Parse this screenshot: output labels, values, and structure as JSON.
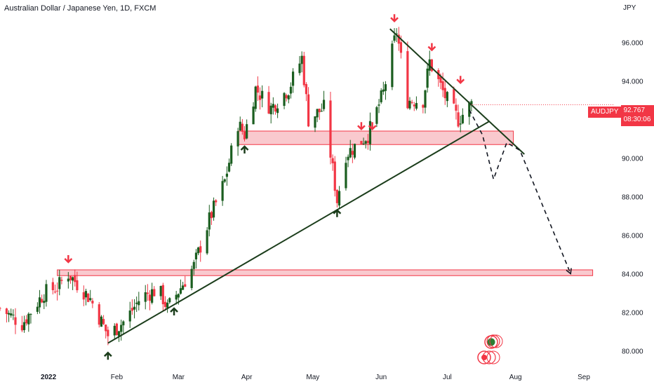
{
  "chart": {
    "title": "Australian Dollar / Japanese Yen, 1D, FXCM",
    "price_unit": "JPY",
    "symbol": "AUDJPY",
    "last_price": "92.767",
    "countdown": "08:30:06"
  },
  "colors": {
    "bullish": "#26a69a",
    "bullish_body": "#1b5e20",
    "bearish": "#f23645",
    "zone_fill": "#f7b7bd",
    "arrow_down": "#f23645",
    "arrow_up": "#1b3d1b",
    "trendline": "#1b3d1b"
  },
  "chart_data": {
    "type": "candlestick",
    "instrument": "AUDJPY",
    "timeframe": "1D",
    "y_range": [
      79.0,
      98.2
    ],
    "y_ticks": [
      80,
      82,
      84,
      86,
      88,
      90,
      92,
      94,
      96
    ],
    "y_tick_labels": [
      "80.000",
      "82.000",
      "84.000",
      "86.000",
      "88.000",
      "90.000",
      "92.000",
      "94.000",
      "96.000"
    ],
    "x_range": [
      "2021-12-10",
      "2022-09-15"
    ],
    "x_ticks": [
      {
        "date": "2022-01-01",
        "label": "2022",
        "bold": true
      },
      {
        "date": "2022-02-01",
        "label": "Feb"
      },
      {
        "date": "2022-03-01",
        "label": "Mar"
      },
      {
        "date": "2022-04-01",
        "label": "Apr"
      },
      {
        "date": "2022-05-01",
        "label": "May"
      },
      {
        "date": "2022-06-01",
        "label": "Jun"
      },
      {
        "date": "2022-07-01",
        "label": "Jul"
      },
      {
        "date": "2022-08-01",
        "label": "Aug"
      },
      {
        "date": "2022-09-01",
        "label": "Sep"
      }
    ],
    "close_path": [
      [
        "2021-12-10",
        82.2
      ],
      [
        "2021-12-20",
        81.4
      ],
      [
        "2021-12-30",
        83.0
      ],
      [
        "2022-01-05",
        83.3
      ],
      [
        "2022-01-10",
        84.0
      ],
      [
        "2022-01-20",
        82.7
      ],
      [
        "2022-01-28",
        80.8
      ],
      [
        "2022-02-05",
        81.6
      ],
      [
        "2022-02-12",
        82.8
      ],
      [
        "2022-02-20",
        83.2
      ],
      [
        "2022-02-24",
        82.2
      ],
      [
        "2022-03-01",
        83.1
      ],
      [
        "2022-03-08",
        84.4
      ],
      [
        "2022-03-15",
        86.8
      ],
      [
        "2022-03-22",
        88.8
      ],
      [
        "2022-03-28",
        91.8
      ],
      [
        "2022-03-31",
        91.2
      ],
      [
        "2022-04-05",
        93.6
      ],
      [
        "2022-04-12",
        92.6
      ],
      [
        "2022-04-20",
        93.6
      ],
      [
        "2022-04-26",
        95.2
      ],
      [
        "2022-04-29",
        92.0
      ],
      [
        "2022-05-06",
        92.6
      ],
      [
        "2022-05-12",
        87.8
      ],
      [
        "2022-05-16",
        90.2
      ],
      [
        "2022-05-26",
        91.2
      ],
      [
        "2022-06-02",
        93.4
      ],
      [
        "2022-06-08",
        96.6
      ],
      [
        "2022-06-13",
        93.0
      ],
      [
        "2022-06-20",
        93.0
      ],
      [
        "2022-06-23",
        95.0
      ],
      [
        "2022-06-30",
        93.2
      ],
      [
        "2022-07-06",
        92.0
      ],
      [
        "2022-07-12",
        92.8
      ]
    ],
    "zones": [
      {
        "x_start": "2022-03-28",
        "x_end": "2022-07-31",
        "y_low": 90.7,
        "y_high": 91.4
      },
      {
        "x_start": "2022-01-05",
        "x_end": "2022-09-05",
        "y_low": 83.9,
        "y_high": 84.2
      }
    ],
    "trendlines": [
      {
        "from": [
          "2022-01-28",
          80.4
        ],
        "to": [
          "2022-07-20",
          91.9
        ]
      },
      {
        "from": [
          "2022-06-05",
          96.7
        ],
        "to": [
          "2022-08-05",
          90.2
        ]
      }
    ],
    "projection": [
      [
        "2022-07-11",
        92.5
      ],
      [
        "2022-07-17",
        91.2
      ],
      [
        "2022-07-22",
        88.9
      ],
      [
        "2022-07-28",
        90.8
      ],
      [
        "2022-08-03",
        90.4
      ],
      [
        "2022-08-26",
        84.0
      ]
    ],
    "markers": [
      {
        "type": "down",
        "date": "2022-01-10",
        "y": 84.6
      },
      {
        "type": "down",
        "date": "2022-06-07",
        "y": 97.1
      },
      {
        "type": "down",
        "date": "2022-06-24",
        "y": 95.6
      },
      {
        "type": "down",
        "date": "2022-07-07",
        "y": 93.9
      },
      {
        "type": "down",
        "date": "2022-05-23",
        "y": 91.5
      },
      {
        "type": "down",
        "date": "2022-05-28",
        "y": 91.5
      },
      {
        "type": "up",
        "date": "2022-01-28",
        "y": 79.9
      },
      {
        "type": "up",
        "date": "2022-02-27",
        "y": 82.2
      },
      {
        "type": "up",
        "date": "2022-03-31",
        "y": 90.6
      },
      {
        "type": "up",
        "date": "2022-05-12",
        "y": 87.3
      }
    ],
    "current_price": 92.767
  }
}
